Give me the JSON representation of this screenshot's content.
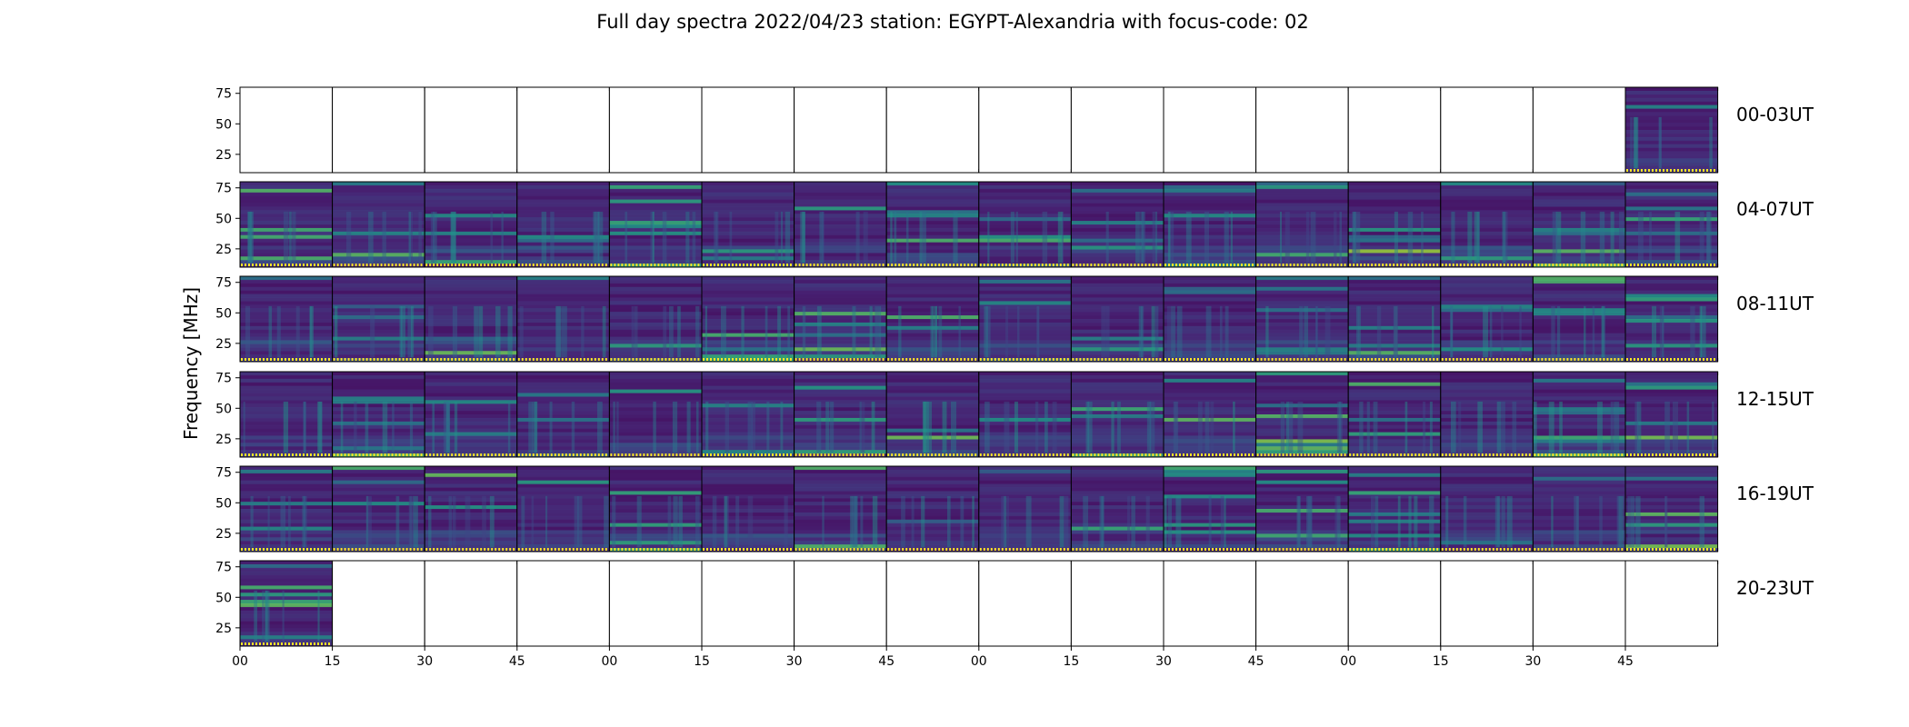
{
  "chart_data": {
    "type": "heatmap",
    "title": "Full day spectra 2022/04/23 station: EGYPT-Alexandria with focus-code: 02",
    "ylabel": "Frequency [MHz]",
    "xlabel": "",
    "y_ticks": [
      25,
      50,
      75
    ],
    "ylim": [
      10,
      80
    ],
    "x_tick_labels": [
      "00",
      "15",
      "30",
      "45",
      "00",
      "15",
      "30",
      "45",
      "00",
      "15",
      "30",
      "45",
      "00",
      "15",
      "30",
      "45"
    ],
    "colormap": "viridis",
    "grid": false,
    "panels_per_row": 16,
    "minutes_per_panel": 15,
    "rows": [
      {
        "label": "00-03UT",
        "has_data": [
          false,
          false,
          false,
          false,
          false,
          false,
          false,
          false,
          false,
          false,
          false,
          false,
          false,
          false,
          false,
          true
        ]
      },
      {
        "label": "04-07UT",
        "has_data": [
          true,
          true,
          true,
          true,
          true,
          true,
          true,
          true,
          true,
          true,
          true,
          true,
          true,
          true,
          true,
          true
        ]
      },
      {
        "label": "08-11UT",
        "has_data": [
          true,
          true,
          true,
          true,
          true,
          true,
          true,
          true,
          true,
          true,
          true,
          true,
          true,
          true,
          true,
          true
        ]
      },
      {
        "label": "12-15UT",
        "has_data": [
          true,
          true,
          true,
          true,
          true,
          true,
          true,
          true,
          true,
          true,
          true,
          true,
          true,
          true,
          true,
          true
        ]
      },
      {
        "label": "16-19UT",
        "has_data": [
          true,
          true,
          true,
          true,
          true,
          true,
          true,
          true,
          true,
          true,
          true,
          true,
          true,
          true,
          true,
          true
        ]
      },
      {
        "label": "20-23UT",
        "has_data": [
          true,
          false,
          false,
          false,
          false,
          false,
          false,
          false,
          false,
          false,
          false,
          false,
          false,
          false,
          false,
          false
        ]
      }
    ]
  }
}
